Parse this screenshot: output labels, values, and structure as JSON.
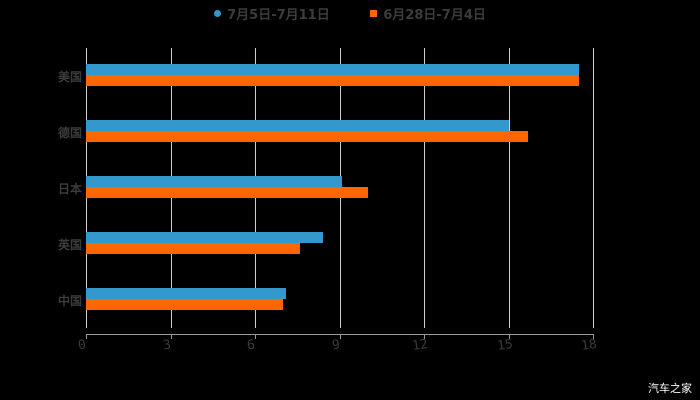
{
  "legend": [
    {
      "label": "7月5日-7月11日",
      "color": "#3399cc",
      "marker": "circle"
    },
    {
      "label": "6月28日-7月4日",
      "color": "#ff6600",
      "marker": "square"
    }
  ],
  "watermark": "汽车之家",
  "chart_data": {
    "type": "bar",
    "orientation": "horizontal",
    "title": "",
    "xlabel": "",
    "ylabel": "",
    "categories": [
      "美国",
      "德国",
      "日本",
      "英国",
      "中国"
    ],
    "series": [
      {
        "name": "7月5日-7月11日",
        "color": "#3399cc",
        "values": [
          17.5,
          15.0,
          9.1,
          8.4,
          7.1
        ]
      },
      {
        "name": "6月28日-7月4日",
        "color": "#ff6600",
        "values": [
          17.5,
          15.7,
          10.0,
          7.6,
          7.0
        ]
      }
    ],
    "xlim": [
      0,
      18
    ],
    "xticks": [
      "0",
      "3",
      "6",
      "9",
      "12",
      "15",
      "18"
    ],
    "grid": "vertical",
    "legend_position": "top"
  }
}
